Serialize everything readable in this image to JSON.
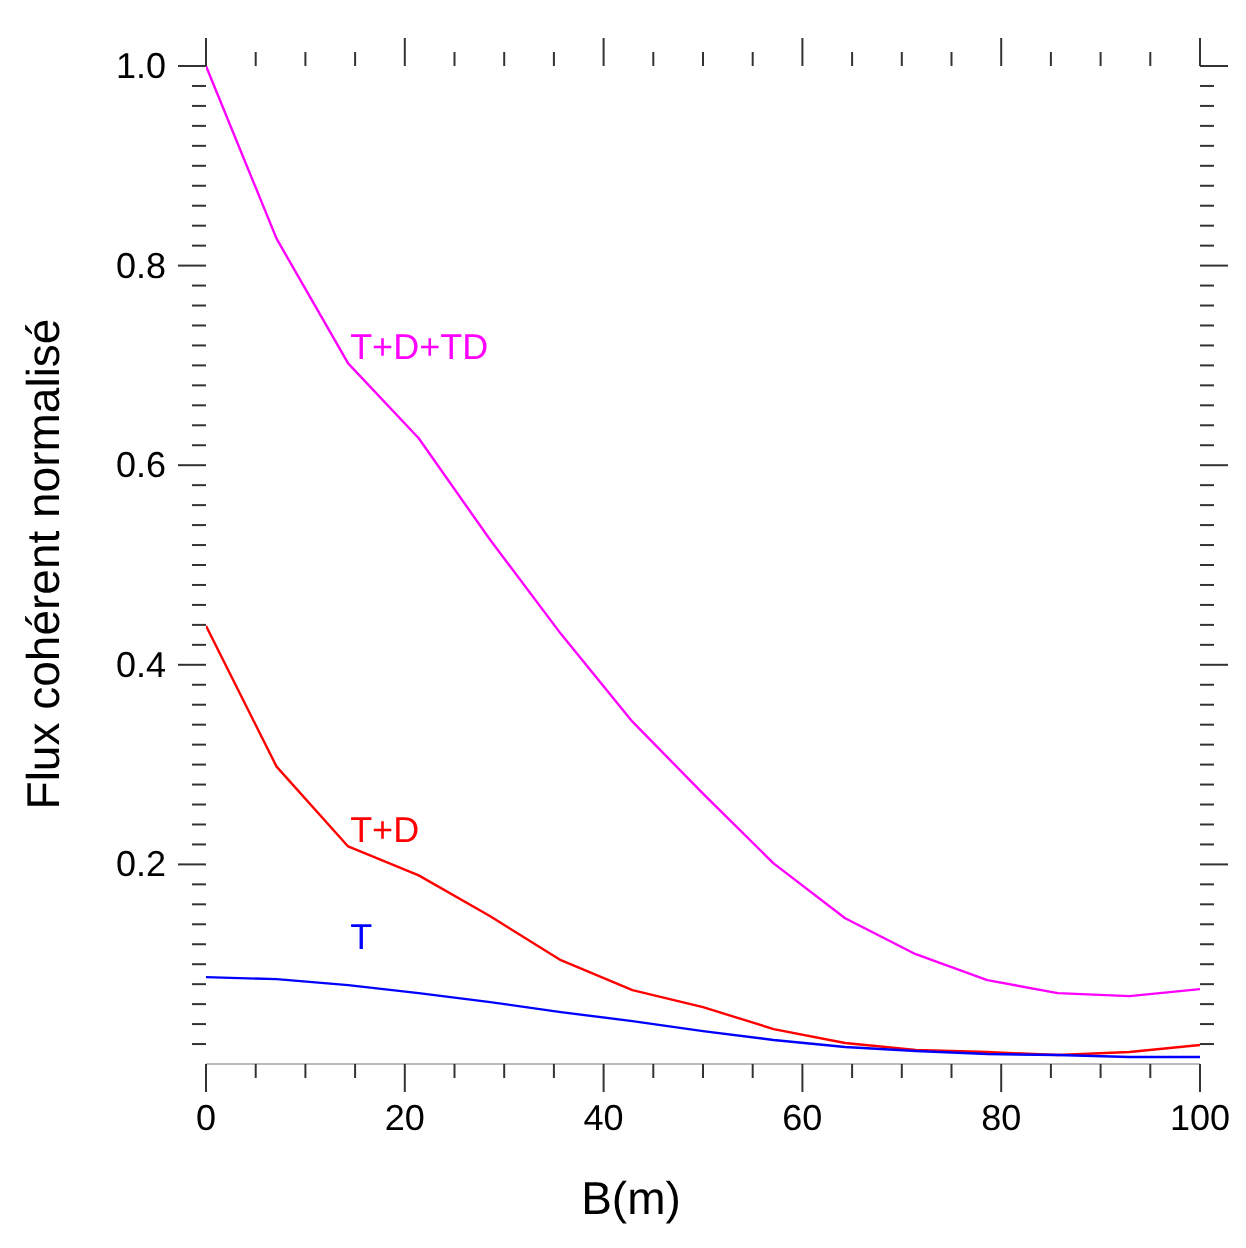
{
  "chart_data": {
    "type": "line",
    "xlabel": "B(m)",
    "ylabel": "Flux cohérent normalisé",
    "x": [
      0,
      7.1,
      14.3,
      21.4,
      28.6,
      35.7,
      42.9,
      50,
      57.1,
      64.3,
      71.4,
      78.6,
      85.7,
      92.9,
      100
    ],
    "series": [
      {
        "name": "T+D+TD",
        "color": "#ff00ff",
        "values": [
          1.0,
          0.827,
          0.702,
          0.627,
          0.525,
          0.431,
          0.343,
          0.271,
          0.201,
          0.146,
          0.11,
          0.084,
          0.071,
          0.068,
          0.075
        ]
      },
      {
        "name": "T+D",
        "color": "#ff0000",
        "values": [
          0.439,
          0.298,
          0.218,
          0.189,
          0.148,
          0.104,
          0.074,
          0.057,
          0.035,
          0.021,
          0.014,
          0.012,
          0.009,
          0.012,
          0.019
        ]
      },
      {
        "name": "T",
        "color": "#0000ff",
        "values": [
          0.087,
          0.085,
          0.079,
          0.071,
          0.062,
          0.052,
          0.043,
          0.033,
          0.024,
          0.017,
          0.013,
          0.01,
          0.009,
          0.007,
          0.007
        ]
      }
    ],
    "xlim": [
      0,
      100
    ],
    "xticks": [
      0,
      {
        "value": 5,
        "label": null
      },
      {
        "value": 10,
        "label": null
      },
      {
        "value": 15,
        "label": null
      },
      20,
      {
        "value": 25,
        "label": null
      },
      {
        "value": 30,
        "label": null
      },
      {
        "value": 35,
        "label": null
      },
      40,
      {
        "value": 45,
        "label": null
      },
      {
        "value": 50,
        "label": null
      },
      {
        "value": 55,
        "label": null
      },
      60,
      {
        "value": 65,
        "label": null
      },
      {
        "value": 70,
        "label": null
      },
      {
        "value": 75,
        "label": null
      },
      80,
      {
        "value": 85,
        "label": null
      },
      {
        "value": 90,
        "label": null
      },
      {
        "value": 95,
        "label": null
      },
      100
    ],
    "ylim": [
      0,
      1.0
    ],
    "yticks": [
      {
        "value": 0.02,
        "label": null
      },
      {
        "value": 0.04,
        "label": null
      },
      {
        "value": 0.06,
        "label": null
      },
      {
        "value": 0.08,
        "label": null
      },
      {
        "value": 0.1,
        "label": null
      },
      {
        "value": 0.12,
        "label": null
      },
      {
        "value": 0.14,
        "label": null
      },
      {
        "value": 0.16,
        "label": null
      },
      {
        "value": 0.18,
        "label": null
      },
      0.2,
      {
        "value": 0.22,
        "label": null
      },
      {
        "value": 0.24,
        "label": null
      },
      {
        "value": 0.26,
        "label": null
      },
      {
        "value": 0.28,
        "label": null
      },
      {
        "value": 0.3,
        "label": null
      },
      {
        "value": 0.32,
        "label": null
      },
      {
        "value": 0.34,
        "label": null
      },
      {
        "value": 0.36,
        "label": null
      },
      {
        "value": 0.38,
        "label": null
      },
      0.4,
      {
        "value": 0.42,
        "label": null
      },
      {
        "value": 0.44,
        "label": null
      },
      {
        "value": 0.46,
        "label": null
      },
      {
        "value": 0.48,
        "label": null
      },
      {
        "value": 0.5,
        "label": null
      },
      {
        "value": 0.52,
        "label": null
      },
      {
        "value": 0.54,
        "label": null
      },
      {
        "value": 0.56,
        "label": null
      },
      {
        "value": 0.58,
        "label": null
      },
      0.6,
      {
        "value": 0.62,
        "label": null
      },
      {
        "value": 0.64,
        "label": null
      },
      {
        "value": 0.66,
        "label": null
      },
      {
        "value": 0.68,
        "label": null
      },
      {
        "value": 0.7,
        "label": null
      },
      {
        "value": 0.72,
        "label": null
      },
      {
        "value": 0.74,
        "label": null
      },
      {
        "value": 0.76,
        "label": null
      },
      {
        "value": 0.78,
        "label": null
      },
      0.8,
      {
        "value": 0.82,
        "label": null
      },
      {
        "value": 0.84,
        "label": null
      },
      {
        "value": 0.86,
        "label": null
      },
      {
        "value": 0.88,
        "label": null
      },
      {
        "value": 0.9,
        "label": null
      },
      {
        "value": 0.92,
        "label": null
      },
      {
        "value": 0.94,
        "label": null
      },
      {
        "value": 0.96,
        "label": null
      },
      {
        "value": 0.98,
        "label": null
      },
      {
        "value": 1.0,
        "label": "1.0"
      }
    ],
    "grid": false,
    "legend": false,
    "marker": "none",
    "line_style": "solid"
  }
}
